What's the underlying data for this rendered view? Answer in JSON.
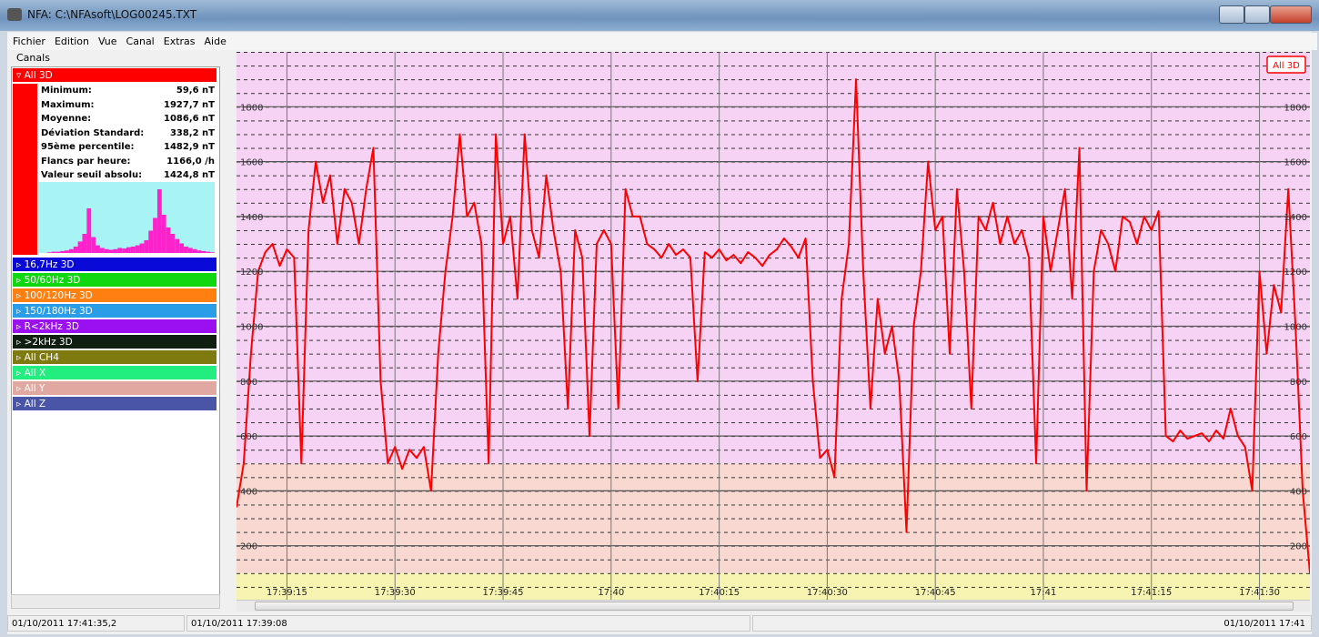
{
  "window": {
    "title": "NFA: C:\\NFAsoft\\LOG00245.TXT"
  },
  "menu": [
    "Fichier",
    "Edition",
    "Vue",
    "Canal",
    "Extras",
    "Aide"
  ],
  "sidebar": {
    "heading": "Canals",
    "channels": [
      {
        "label": "All 3D",
        "color": "#ff0000",
        "stats": [
          {
            "label": "Minimum:",
            "value": "59,6 nT"
          },
          {
            "label": "Maximum:",
            "value": "1927,7 nT"
          },
          {
            "label": "Moyenne:",
            "value": "1086,6 nT"
          },
          {
            "label": "Déviation Standard:",
            "value": "338,2 nT"
          },
          {
            "label": "95ème percentile:",
            "value": "1482,9 nT"
          },
          {
            "label": "Flancs par heure:",
            "value": "1166,0 /h"
          },
          {
            "label": "Valeur seuil absolu:",
            "value": "1424,8 nT"
          }
        ],
        "histogram": {
          "color": "#ff22cc",
          "values": [
            0,
            0,
            1,
            2,
            2,
            3,
            4,
            6,
            10,
            18,
            30,
            70,
            25,
            12,
            8,
            6,
            5,
            6,
            8,
            7,
            9,
            10,
            12,
            15,
            20,
            35,
            55,
            100,
            60,
            40,
            30,
            22,
            15,
            10,
            8,
            6,
            4,
            3,
            2,
            1
          ]
        }
      },
      {
        "label": "16,7Hz 3D",
        "color": "#0a0ad8"
      },
      {
        "label": "50/60Hz 3D",
        "color": "#10d810"
      },
      {
        "label": "100/120Hz 3D",
        "color": "#ff7f10"
      },
      {
        "label": "150/180Hz 3D",
        "color": "#2a9de8"
      },
      {
        "label": "R<2kHz 3D",
        "color": "#9a10f0"
      },
      {
        "label": ">2kHz 3D",
        "color": "#102010"
      },
      {
        "label": "All CH4",
        "color": "#7f7a10"
      },
      {
        "label": "All X",
        "color": "#22ee80"
      },
      {
        "label": "All Y",
        "color": "#e0a8a0"
      },
      {
        "label": "All Z",
        "color": "#4a55a8"
      }
    ]
  },
  "chart_data": {
    "type": "line",
    "x": [
      63548,
      63549,
      63550,
      63551,
      63552,
      63553,
      63554,
      63555,
      63556,
      63557,
      63558,
      63559,
      63560,
      63561,
      63562,
      63563,
      63564,
      63565,
      63566,
      63567,
      63568,
      63569,
      63570,
      63571,
      63572,
      63573,
      63574,
      63575,
      63576,
      63577,
      63578,
      63579,
      63580,
      63581,
      63582,
      63583,
      63584,
      63585,
      63586,
      63587,
      63588,
      63589,
      63590,
      63591,
      63592,
      63593,
      63594,
      63595,
      63596,
      63597,
      63598,
      63599,
      63600,
      63601,
      63602,
      63603,
      63604,
      63605,
      63606,
      63607,
      63608,
      63609,
      63610,
      63611,
      63612,
      63613,
      63614,
      63615,
      63616,
      63617,
      63618,
      63619,
      63620,
      63621,
      63622,
      63623,
      63624,
      63625,
      63626,
      63627,
      63628,
      63629,
      63630,
      63631,
      63632,
      63633,
      63634,
      63635,
      63636,
      63637,
      63638,
      63639,
      63640,
      63641,
      63642,
      63643,
      63644,
      63645,
      63646,
      63647,
      63648,
      63649,
      63650,
      63651,
      63652,
      63653,
      63654,
      63655,
      63656,
      63657,
      63658,
      63659,
      63660,
      63661,
      63662,
      63663,
      63664,
      63665,
      63666,
      63667,
      63668,
      63669,
      63670,
      63671,
      63672,
      63673,
      63674,
      63675,
      63676,
      63677,
      63678,
      63679,
      63680,
      63681,
      63682,
      63683,
      63684,
      63685,
      63686,
      63687,
      63688,
      63689,
      63690,
      63691,
      63692,
      63693,
      63694,
      63695,
      63696,
      63697
    ],
    "series": [
      {
        "name": "All 3D",
        "color": "#ff0000",
        "values": [
          340,
          500,
          900,
          1200,
          1270,
          1300,
          1220,
          1280,
          1250,
          500,
          1350,
          1600,
          1450,
          1550,
          1300,
          1500,
          1450,
          1300,
          1500,
          1650,
          800,
          500,
          560,
          480,
          550,
          520,
          560,
          400,
          900,
          1200,
          1400,
          1700,
          1400,
          1450,
          1300,
          500,
          1700,
          1300,
          1400,
          1100,
          1700,
          1350,
          1250,
          1550,
          1350,
          1200,
          700,
          1350,
          1250,
          600,
          1300,
          1350,
          1300,
          700,
          1500,
          1400,
          1400,
          1300,
          1280,
          1250,
          1300,
          1260,
          1280,
          1250,
          800,
          1270,
          1250,
          1280,
          1240,
          1260,
          1230,
          1270,
          1250,
          1220,
          1260,
          1280,
          1320,
          1290,
          1250,
          1320,
          800,
          520,
          550,
          450,
          1100,
          1300,
          1900,
          1200,
          700,
          1100,
          900,
          1000,
          800,
          250,
          1000,
          1200,
          1600,
          1350,
          1400,
          900,
          1500,
          1200,
          700,
          1400,
          1350,
          1450,
          1300,
          1400,
          1300,
          1350,
          1250,
          500,
          1400,
          1200,
          1350,
          1500,
          1100,
          1650,
          400,
          1200,
          1350,
          1300,
          1200,
          1400,
          1380,
          1300,
          1400,
          1350,
          1420,
          600,
          580,
          620,
          590,
          600,
          610,
          580,
          620,
          590,
          700,
          600,
          560,
          400,
          1200,
          900,
          1150,
          1050,
          1500,
          1000,
          400,
          100
        ]
      }
    ],
    "xlim": [
      63548,
      63697
    ],
    "xticks": [
      {
        "value": 63555,
        "label": "17:39:15"
      },
      {
        "value": 63570,
        "label": "17:39:30"
      },
      {
        "value": 63585,
        "label": "17:39:45"
      },
      {
        "value": 63600,
        "label": "17:40"
      },
      {
        "value": 63615,
        "label": "17:40:15"
      },
      {
        "value": 63630,
        "label": "17:40:30"
      },
      {
        "value": 63645,
        "label": "17:40:45"
      },
      {
        "value": 63660,
        "label": "17:41"
      },
      {
        "value": 63675,
        "label": "17:41:15"
      },
      {
        "value": 63690,
        "label": "17:41:30"
      }
    ],
    "ylim": [
      0,
      2000
    ],
    "yticks": [
      200,
      400,
      600,
      800,
      1000,
      1200,
      1400,
      1600,
      1800
    ],
    "bands": [
      {
        "from": 500,
        "to": 2000,
        "color": "#f6d2f4"
      },
      {
        "from": 100,
        "to": 500,
        "color": "#f8d8d0"
      },
      {
        "from": 0,
        "to": 100,
        "color": "#f6f4b0"
      }
    ],
    "grid": true
  },
  "status": [
    "01/10/2011 17:41:35,2",
    "01/10/2011 17:39:08",
    "01/10/2011 17:41"
  ]
}
